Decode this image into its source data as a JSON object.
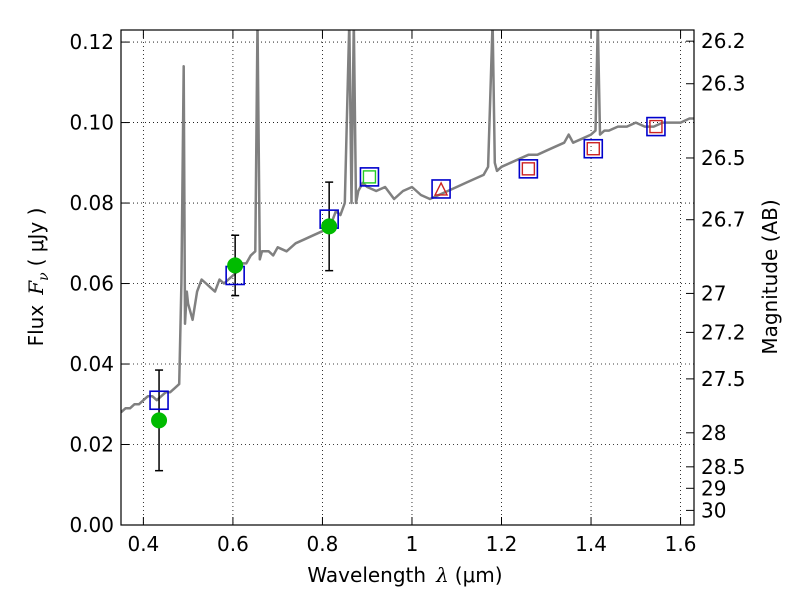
{
  "chart_data": {
    "type": "line",
    "xlabel_text": "Wavelength",
    "xlabel_symbol": "λ",
    "xlabel_unit": "(μm)",
    "ylabel_text": "Flux",
    "ylabel_symbol": "F",
    "ylabel_subscript": "ν",
    "ylabel_unit": "( μJy )",
    "y2label": "Magnitude (AB)",
    "xlim": [
      0.35,
      1.63
    ],
    "ylim": [
      0.0,
      0.123
    ],
    "grid": true,
    "x_ticks": [
      {
        "value": 0.4,
        "label": "0.4"
      },
      {
        "value": 0.6,
        "label": "0.6"
      },
      {
        "value": 0.8,
        "label": "0.8"
      },
      {
        "value": 1.0,
        "label": "1"
      },
      {
        "value": 1.2,
        "label": "1.2"
      },
      {
        "value": 1.4,
        "label": "1.4"
      },
      {
        "value": 1.6,
        "label": "1.6"
      }
    ],
    "y_ticks": [
      {
        "value": 0.0,
        "label": "0.00"
      },
      {
        "value": 0.02,
        "label": "0.02"
      },
      {
        "value": 0.04,
        "label": "0.04"
      },
      {
        "value": 0.06,
        "label": "0.06"
      },
      {
        "value": 0.08,
        "label": "0.08"
      },
      {
        "value": 0.1,
        "label": "0.10"
      },
      {
        "value": 0.12,
        "label": "0.12"
      }
    ],
    "y2_ticks": [
      {
        "value": 26.2,
        "label": "26.2"
      },
      {
        "value": 26.3,
        "label": "26.3"
      },
      {
        "value": 26.5,
        "label": "26.5"
      },
      {
        "value": 26.7,
        "label": "26.7"
      },
      {
        "value": 27.0,
        "label": "27"
      },
      {
        "value": 27.2,
        "label": "27.2"
      },
      {
        "value": 27.5,
        "label": "27.5"
      },
      {
        "value": 28.0,
        "label": "28"
      },
      {
        "value": 28.5,
        "label": "28.5"
      },
      {
        "value": 29.0,
        "label": "29"
      },
      {
        "value": 30.0,
        "label": "30"
      }
    ],
    "colors": {
      "spectrum": "#808080",
      "observed": "#00bb00",
      "model_box": "#0000cc",
      "model_box_red": "#cc2222",
      "model_box_green": "#22cc22",
      "errorbar": "#000000"
    },
    "series": [
      {
        "type": "line",
        "x": [
          0.35,
          0.36,
          0.37,
          0.38,
          0.39,
          0.4,
          0.41,
          0.42,
          0.43,
          0.44,
          0.45,
          0.46,
          0.47,
          0.48,
          0.485,
          0.49,
          0.493,
          0.497,
          0.5,
          0.51,
          0.52,
          0.53,
          0.54,
          0.55,
          0.56,
          0.57,
          0.58,
          0.59,
          0.6,
          0.61,
          0.62,
          0.63,
          0.64,
          0.65,
          0.655,
          0.66,
          0.665,
          0.67,
          0.68,
          0.69,
          0.7,
          0.72,
          0.74,
          0.76,
          0.78,
          0.8,
          0.82,
          0.83,
          0.84,
          0.85,
          0.86,
          0.865,
          0.87,
          0.875,
          0.88,
          0.89,
          0.9,
          0.92,
          0.94,
          0.96,
          0.98,
          1.0,
          1.02,
          1.04,
          1.06,
          1.08,
          1.1,
          1.12,
          1.14,
          1.16,
          1.17,
          1.18,
          1.185,
          1.19,
          1.2,
          1.22,
          1.24,
          1.26,
          1.28,
          1.3,
          1.32,
          1.34,
          1.35,
          1.36,
          1.38,
          1.4,
          1.41,
          1.415,
          1.42,
          1.43,
          1.44,
          1.46,
          1.48,
          1.5,
          1.52,
          1.54,
          1.56,
          1.58,
          1.6,
          1.62,
          1.63
        ],
        "y": [
          0.028,
          0.029,
          0.029,
          0.03,
          0.03,
          0.031,
          0.032,
          0.032,
          0.031,
          0.032,
          0.033,
          0.033,
          0.034,
          0.035,
          0.06,
          0.114,
          0.05,
          0.058,
          0.055,
          0.051,
          0.058,
          0.061,
          0.06,
          0.059,
          0.058,
          0.061,
          0.06,
          0.061,
          0.062,
          0.063,
          0.065,
          0.065,
          0.067,
          0.068,
          0.125,
          0.066,
          0.068,
          0.068,
          0.068,
          0.067,
          0.069,
          0.068,
          0.07,
          0.071,
          0.072,
          0.073,
          0.075,
          0.078,
          0.077,
          0.08,
          0.125,
          0.08,
          0.125,
          0.08,
          0.083,
          0.085,
          0.084,
          0.083,
          0.084,
          0.081,
          0.083,
          0.084,
          0.082,
          0.081,
          0.082,
          0.083,
          0.084,
          0.085,
          0.086,
          0.087,
          0.089,
          0.125,
          0.09,
          0.088,
          0.089,
          0.09,
          0.091,
          0.092,
          0.092,
          0.093,
          0.094,
          0.095,
          0.097,
          0.095,
          0.096,
          0.097,
          0.098,
          0.125,
          0.097,
          0.098,
          0.098,
          0.099,
          0.099,
          0.1,
          0.099,
          0.099,
          0.1,
          0.1,
          0.1,
          0.101,
          0.101
        ]
      }
    ],
    "observed": {
      "x": [
        0.435,
        0.605,
        0.815
      ],
      "y": [
        0.026,
        0.0645,
        0.0742
      ],
      "yerr": [
        0.0125,
        0.0075,
        0.011
      ]
    },
    "model": {
      "x": [
        0.435,
        0.605,
        0.815,
        0.905,
        1.065,
        1.26,
        1.405,
        1.545
      ],
      "y": [
        0.031,
        0.062,
        0.076,
        0.0865,
        0.0835,
        0.0885,
        0.0935,
        0.099
      ]
    },
    "model_inner": [
      {
        "x": 0.905,
        "y": 0.0865,
        "style": "green-square"
      },
      {
        "x": 1.065,
        "y": 0.0835,
        "style": "red-triangle"
      },
      {
        "x": 1.26,
        "y": 0.0885,
        "style": "red-square"
      },
      {
        "x": 1.405,
        "y": 0.0935,
        "style": "red-square"
      },
      {
        "x": 1.545,
        "y": 0.099,
        "style": "red-square"
      }
    ]
  }
}
